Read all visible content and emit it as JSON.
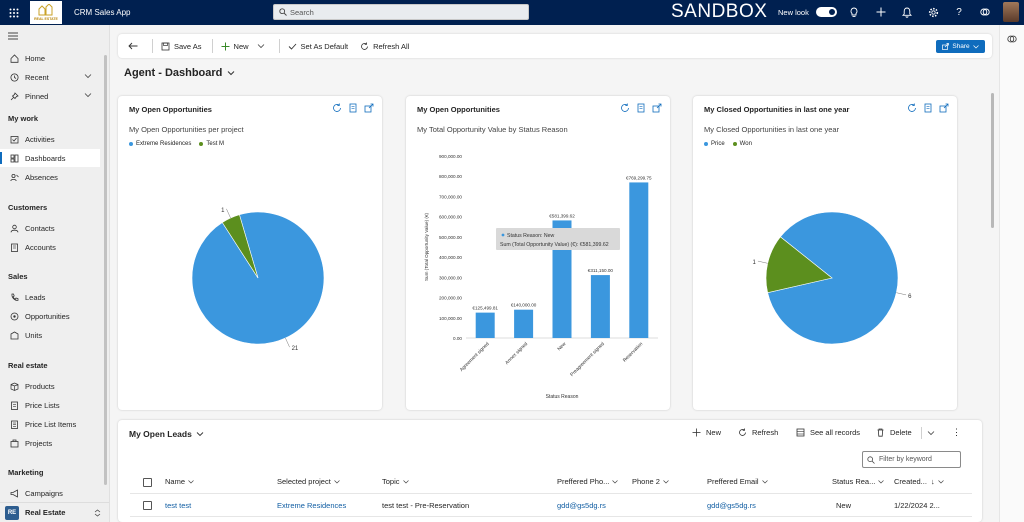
{
  "topbar": {
    "logo_text": "REAL ESTATE",
    "app_title": "CRM Sales App",
    "search_placeholder": "Search",
    "environment": "SANDBOX",
    "new_look_label": "New look",
    "new_look_on": true
  },
  "sidebar": {
    "items": [
      {
        "label": "Home",
        "icon": "home-icon"
      },
      {
        "label": "Recent",
        "icon": "clock-icon"
      },
      {
        "label": "Pinned",
        "icon": "pin-icon"
      }
    ],
    "sections": [
      {
        "title": "My work",
        "items": [
          "Activities",
          "Dashboards",
          "Absences"
        ]
      },
      {
        "title": "Customers",
        "items": [
          "Contacts",
          "Accounts"
        ]
      },
      {
        "title": "Sales",
        "items": [
          "Leads",
          "Opportunities",
          "Units"
        ]
      },
      {
        "title": "Real estate",
        "items": [
          "Products",
          "Price Lists",
          "Price List Items",
          "Projects"
        ]
      },
      {
        "title": "Marketing",
        "items": [
          "Campaigns"
        ]
      }
    ],
    "active_item": "Dashboards",
    "area_badge": "RE",
    "area_label": "Real Estate"
  },
  "commandbar": {
    "save_as": "Save As",
    "new": "New",
    "set_default": "Set As Default",
    "refresh_all": "Refresh All",
    "share": "Share"
  },
  "dashboard_title": "Agent - Dashboard",
  "cards": [
    {
      "title": "My Open Opportunities",
      "subtitle": "My Open Opportunities per project"
    },
    {
      "title": "My Open Opportunities",
      "subtitle": "My Total Opportunity Value by Status Reason"
    },
    {
      "title": "My Closed Opportunities in last one year",
      "subtitle": "My Closed Opportunities in last one year"
    }
  ],
  "colors": {
    "blue": "#3b97de",
    "green": "#5c8f1e",
    "accent": "#0f6cbd"
  },
  "chart_data": [
    {
      "type": "pie",
      "categories": [
        "Extreme Residences",
        "Test M"
      ],
      "values": [
        21,
        1
      ],
      "title": "My Open Opportunities per project",
      "legend": "top-left",
      "colors": [
        "#3b97de",
        "#5c8f1e"
      ]
    },
    {
      "type": "bar",
      "title": "My Total Opportunity Value by Status Reason",
      "categories": [
        "Agreement signed",
        "Annex signed",
        "New",
        "Preagreement signed",
        "Reservation"
      ],
      "values": [
        125499.81,
        140000.0,
        581399.62,
        311150.0,
        769299.75
      ],
      "data_labels": [
        "€125,499.81",
        "€140,000.00",
        "€581,399.62",
        "€311,150.00",
        "€769,299.75"
      ],
      "xlabel": "Status Reason",
      "ylabel": "Sum (Total Opportunity Value) (€)",
      "ylim": [
        0,
        900000
      ],
      "yticks": [
        "0.00",
        "100,000.00",
        "200,000.00",
        "300,000.00",
        "400,000.00",
        "500,000.00",
        "600,000.00",
        "700,000.00",
        "800,000.00",
        "900,000.00"
      ],
      "tooltip": {
        "line1": "Status Reason: New",
        "line2": "Sum (Total Opportunity Value) (€): €581,399.62"
      }
    },
    {
      "type": "pie",
      "categories": [
        "Price",
        "Won"
      ],
      "values": [
        6,
        1
      ],
      "title": "My Closed Opportunities in last one year",
      "legend": "top-left",
      "colors": [
        "#3b97de",
        "#5c8f1e"
      ]
    }
  ],
  "leads": {
    "title": "My Open Leads",
    "commands": {
      "new": "New",
      "refresh": "Refresh",
      "see_all": "See all records",
      "delete": "Delete"
    },
    "filter_placeholder": "Filter by keyword",
    "columns": [
      "Name",
      "Selected project",
      "Topic",
      "Preffered Pho...",
      "Phone 2",
      "Preffered Email",
      "Status Rea...",
      "Created..."
    ],
    "rows": [
      {
        "name": "test test",
        "project": "Extreme Residences",
        "topic": "test test - Pre-Reservation",
        "phone": "gdd@gs5dg.rs",
        "phone2": "",
        "email": "gdd@gs5dg.rs",
        "status": "New",
        "created": "1/22/2024 2..."
      }
    ]
  }
}
